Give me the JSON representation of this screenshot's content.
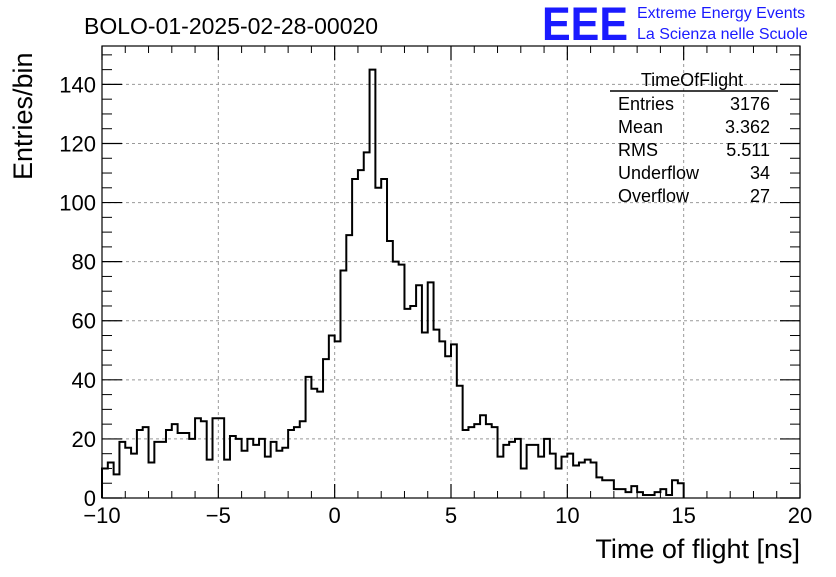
{
  "chart_data": {
    "type": "histogram",
    "title": "BOLO-01-2025-02-28-00020",
    "xlabel": "Time of flight [ns]",
    "ylabel": "Entries/bin",
    "xlim": [
      -10,
      20
    ],
    "ylim": [
      0,
      153
    ],
    "grid": true,
    "x_ticks": [
      "-10",
      "-5",
      "0",
      "5",
      "10",
      "15",
      "20"
    ],
    "y_ticks": [
      "0",
      "20",
      "40",
      "60",
      "80",
      "100",
      "120",
      "140"
    ],
    "bin_start": -10,
    "bin_width": 0.25,
    "values": [
      10,
      12,
      8,
      19,
      17,
      15,
      23,
      24,
      12,
      19,
      19,
      23,
      25,
      22,
      22,
      20,
      27,
      26,
      13,
      27,
      27,
      13,
      21,
      20,
      16,
      20,
      18,
      20,
      14,
      19,
      16,
      17,
      23,
      24,
      26,
      41,
      37,
      36,
      47,
      55,
      53,
      77,
      89,
      108,
      111,
      117,
      145,
      105,
      108,
      87,
      80,
      79,
      64,
      65,
      72,
      56,
      73,
      57,
      53,
      48,
      52,
      38,
      23,
      24,
      25,
      28,
      25,
      24,
      14,
      18,
      19,
      20,
      10,
      18,
      18,
      14,
      20,
      15,
      10,
      14,
      15,
      11,
      12,
      13,
      12,
      7,
      6,
      6,
      3,
      3,
      2,
      4,
      2,
      1,
      1,
      2,
      3,
      1,
      6,
      5
    ],
    "stats_box": {
      "title": "TimeOfFlight",
      "rows": [
        {
          "label": "Entries",
          "value": "3176"
        },
        {
          "label": "Mean",
          "value": "3.362"
        },
        {
          "label": "RMS",
          "value": "5.511"
        },
        {
          "label": "Underflow",
          "value": "34"
        },
        {
          "label": "Overflow",
          "value": "27"
        }
      ]
    }
  },
  "logo": {
    "mark": "EEE",
    "line1": "Extreme Energy Events",
    "line2": "La Scienza nelle Scuole",
    "color": "#1a1aff"
  }
}
